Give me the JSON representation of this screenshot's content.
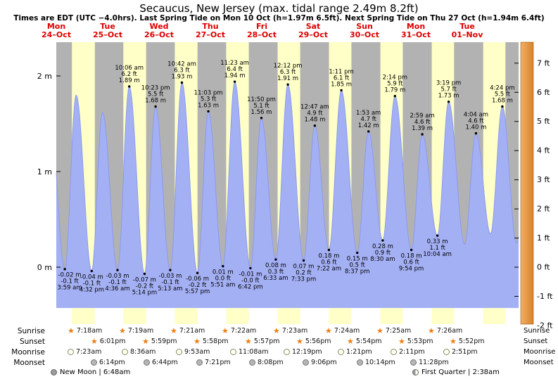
{
  "header": {
    "title": "Secaucus, New Jersey (max. tidal range 2.49m 8.2ft)",
    "subtitle": "Times are EDT (UTC −4.0hrs). Last Spring Tide on Mon 10 Oct (h=1.97m 6.5ft). Next Spring Tide on Thu 27 Oct (h=1.94m 6.4ft)"
  },
  "days": [
    {
      "name": "Mon",
      "date": "24–Oct"
    },
    {
      "name": "Tue",
      "date": "25–Oct"
    },
    {
      "name": "Wed",
      "date": "26–Oct"
    },
    {
      "name": "Thu",
      "date": "27–Oct"
    },
    {
      "name": "Fri",
      "date": "28–Oct"
    },
    {
      "name": "Sat",
      "date": "29–Oct"
    },
    {
      "name": "Sun",
      "date": "30–Oct"
    },
    {
      "name": "Mon",
      "date": "31–Oct"
    },
    {
      "name": "Tue",
      "date": "01–Nov"
    }
  ],
  "colors": {
    "day_band": "#ffffc8",
    "night_band": "#b2b2b2",
    "tide_fill": "#a4b0f4",
    "tide_stroke": "#8b9af0",
    "accent_red": "#dd0000",
    "strip_orange_light": "#f0b067",
    "strip_orange_dark": "#d98229",
    "annotation_text": "#000000"
  },
  "chart_data": {
    "type": "area",
    "title": "Tide height curve, Secaucus, New Jersey, Mon 24 Oct – Tue 01 Nov",
    "x_range_days": 9,
    "ylim_m": [
      -0.61,
      2.35
    ],
    "left_axis_unit": "m",
    "right_axis_unit": "ft",
    "m_ticks": [
      {
        "v": 2,
        "label": "2 m"
      },
      {
        "v": 1,
        "label": "1 m"
      },
      {
        "v": 0,
        "label": "0 m"
      }
    ],
    "ft_ticks": [
      {
        "v": 7,
        "label": "7 ft"
      },
      {
        "v": 6,
        "label": "6 ft"
      },
      {
        "v": 5,
        "label": "5 ft"
      },
      {
        "v": 4,
        "label": "4 ft"
      },
      {
        "v": 3,
        "label": "3 ft"
      },
      {
        "v": 2,
        "label": "2 ft"
      },
      {
        "v": 1,
        "label": "1 ft"
      },
      {
        "v": 0,
        "label": "0 ft"
      },
      {
        "v": -1,
        "label": "-1 ft"
      },
      {
        "v": -2,
        "label": "-2 ft"
      }
    ],
    "extremes": [
      {
        "type": "high",
        "day": -1,
        "hour": 20.8,
        "height_m": 1.7,
        "annotated": false
      },
      {
        "type": "low",
        "day": 0,
        "time": "3:59 am",
        "height_m": -0.02,
        "m_label": "-0.02 m",
        "ft_label": "-0.1 ft",
        "annotated": true
      },
      {
        "type": "high",
        "day": 0,
        "hour": 9.27,
        "height_m": 1.8,
        "annotated": false
      },
      {
        "type": "low",
        "day": 0,
        "time": "4:32 pm",
        "height_m": -0.04,
        "m_label": "-0.04 m",
        "ft_label": "-0.1 ft",
        "annotated": true
      },
      {
        "type": "high",
        "day": 0,
        "hour": 21.6,
        "height_m": 1.62,
        "annotated": false
      },
      {
        "type": "low",
        "day": 1,
        "time": "4:36 am",
        "height_m": -0.03,
        "m_label": "-0.03 m",
        "ft_label": "-0.1 ft",
        "annotated": true
      },
      {
        "type": "high",
        "day": 1,
        "time": "10:06 am",
        "height_m": 1.89,
        "m_label": "1.89 m",
        "ft_label": "6.2 ft",
        "annotated": true
      },
      {
        "type": "low",
        "day": 1,
        "time": "5:14 pm",
        "height_m": -0.07,
        "m_label": "-0.07 m",
        "ft_label": "-0.2 ft",
        "annotated": true
      },
      {
        "type": "high",
        "day": 1,
        "time": "10:23 pm",
        "height_m": 1.68,
        "m_label": "1.68 m",
        "ft_label": "5.5 ft",
        "annotated": true
      },
      {
        "type": "low",
        "day": 2,
        "time": "5:13 am",
        "height_m": -0.03,
        "m_label": "-0.03 m",
        "ft_label": "-0.1 ft",
        "annotated": true
      },
      {
        "type": "high",
        "day": 2,
        "time": "10:42 am",
        "height_m": 1.93,
        "m_label": "1.93 m",
        "ft_label": "6.3 ft",
        "annotated": true
      },
      {
        "type": "low",
        "day": 2,
        "time": "5:57 pm",
        "height_m": -0.06,
        "m_label": "-0.06 m",
        "ft_label": "-0.2 ft",
        "annotated": true
      },
      {
        "type": "high",
        "day": 2,
        "time": "11:03 pm",
        "height_m": 1.63,
        "m_label": "1.63 m",
        "ft_label": "5.3 ft",
        "annotated": true
      },
      {
        "type": "low",
        "day": 3,
        "time": "5:51 am",
        "height_m": 0.01,
        "m_label": "0.01 m",
        "ft_label": "0.0 ft",
        "annotated": true
      },
      {
        "type": "high",
        "day": 3,
        "time": "11:23 am",
        "height_m": 1.94,
        "m_label": "1.94 m",
        "ft_label": "6.4 ft",
        "annotated": true
      },
      {
        "type": "low",
        "day": 3,
        "time": "6:42 pm",
        "height_m": -0.01,
        "m_label": "-0.01 m",
        "ft_label": "-0.0 ft",
        "annotated": true
      },
      {
        "type": "high",
        "day": 3,
        "time": "11:50 pm",
        "height_m": 1.56,
        "m_label": "1.56 m",
        "ft_label": "5.1 ft",
        "annotated": true
      },
      {
        "type": "low",
        "day": 4,
        "time": "6:33 am",
        "height_m": 0.08,
        "m_label": "0.08 m",
        "ft_label": "0.3 ft",
        "annotated": true
      },
      {
        "type": "high",
        "day": 4,
        "time": "12:12 pm",
        "height_m": 1.91,
        "m_label": "1.91 m",
        "ft_label": "6.3 ft",
        "annotated": true
      },
      {
        "type": "low",
        "day": 4,
        "time": "7:33 pm",
        "height_m": 0.07,
        "m_label": "0.07 m",
        "ft_label": "0.2 ft",
        "annotated": true
      },
      {
        "type": "high",
        "day": 5,
        "time": "12:47 am",
        "height_m": 1.48,
        "m_label": "1.48 m",
        "ft_label": "4.9 ft",
        "annotated": true
      },
      {
        "type": "low",
        "day": 5,
        "time": "7:22 am",
        "height_m": 0.18,
        "m_label": "0.18 m",
        "ft_label": "0.6 ft",
        "annotated": true
      },
      {
        "type": "high",
        "day": 5,
        "time": "1:11 pm",
        "height_m": 1.85,
        "m_label": "1.85 m",
        "ft_label": "6.1 ft",
        "annotated": true
      },
      {
        "type": "low",
        "day": 5,
        "time": "8:37 pm",
        "height_m": 0.15,
        "m_label": "0.15 m",
        "ft_label": "0.5 ft",
        "annotated": true
      },
      {
        "type": "high",
        "day": 6,
        "time": "1:53 am",
        "height_m": 1.42,
        "m_label": "1.42 m",
        "ft_label": "4.7 ft",
        "annotated": true
      },
      {
        "type": "low",
        "day": 6,
        "time": "8:30 am",
        "height_m": 0.28,
        "m_label": "0.28 m",
        "ft_label": "0.9 ft",
        "annotated": true
      },
      {
        "type": "high",
        "day": 6,
        "time": "2:14 pm",
        "height_m": 1.79,
        "m_label": "1.79 m",
        "ft_label": "5.9 ft",
        "annotated": true
      },
      {
        "type": "low",
        "day": 6,
        "time": "9:54 pm",
        "height_m": 0.18,
        "m_label": "0.18 m",
        "ft_label": "0.6 ft",
        "annotated": true
      },
      {
        "type": "high",
        "day": 7,
        "time": "2:59 am",
        "height_m": 1.39,
        "m_label": "1.39 m",
        "ft_label": "4.6 ft",
        "annotated": true
      },
      {
        "type": "low",
        "day": 7,
        "time": "10:04 am",
        "height_m": 0.33,
        "m_label": "0.33 m",
        "ft_label": "1.1 ft",
        "annotated": true
      },
      {
        "type": "high",
        "day": 7,
        "time": "3:19 pm",
        "height_m": 1.73,
        "m_label": "1.73 m",
        "ft_label": "5.7 ft",
        "annotated": true
      },
      {
        "type": "low",
        "day": 7,
        "hour": 22.75,
        "height_m": 0.24,
        "annotated": false
      },
      {
        "type": "high",
        "day": 8,
        "time": "4:04 am",
        "height_m": 1.4,
        "m_label": "1.40 m",
        "ft_label": "4.6 ft",
        "annotated": true
      },
      {
        "type": "low",
        "day": 8,
        "hour": 10.9,
        "height_m": 0.35,
        "annotated": false
      },
      {
        "type": "high",
        "day": 8,
        "time": "4:24 pm",
        "height_m": 1.68,
        "m_label": "1.68 m",
        "ft_label": "5.5 ft",
        "annotated": true
      },
      {
        "type": "low",
        "day": 8,
        "hour": 23.1,
        "height_m": 0.25,
        "annotated": false
      },
      {
        "type": "high",
        "day": 9,
        "hour": 4.8,
        "height_m": 1.4,
        "annotated": false
      }
    ]
  },
  "astro": {
    "rows": [
      {
        "id": "sunrise",
        "label": "Sunrise",
        "icon": "sunrise-star-icon",
        "times": [
          "7:18am",
          "7:19am",
          "7:21am",
          "7:22am",
          "7:23am",
          "7:24am",
          "7:25am",
          "7:26am"
        ]
      },
      {
        "id": "sunset",
        "label": "Sunset",
        "icon": "sunset-star-icon",
        "times": [
          "6:01pm",
          "5:59pm",
          "5:58pm",
          "5:57pm",
          "5:56pm",
          "5:54pm",
          "5:53pm",
          "5:52pm"
        ]
      },
      {
        "id": "moonrise",
        "label": "Moonrise",
        "icon": "moonrise-icon",
        "times": [
          "7:23am",
          "8:36am",
          "9:53am",
          "11:08am",
          "12:19pm",
          "1:21pm",
          "2:11pm",
          "2:51pm"
        ]
      },
      {
        "id": "moonset",
        "label": "Moonset",
        "icon": "moonset-icon",
        "times": [
          "6:14pm",
          "6:44pm",
          "7:21pm",
          "8:08pm",
          "9:06pm",
          "10:14pm",
          "11:28pm"
        ]
      }
    ],
    "phases": [
      {
        "name": "New Moon",
        "time": "6:48am",
        "label": "New Moon | 6:48am",
        "icon": "new-moon-icon"
      },
      {
        "name": "First Quarter",
        "time": "2:38am",
        "label": "First Quarter | 2:38am",
        "icon": "first-quarter-icon"
      }
    ]
  }
}
